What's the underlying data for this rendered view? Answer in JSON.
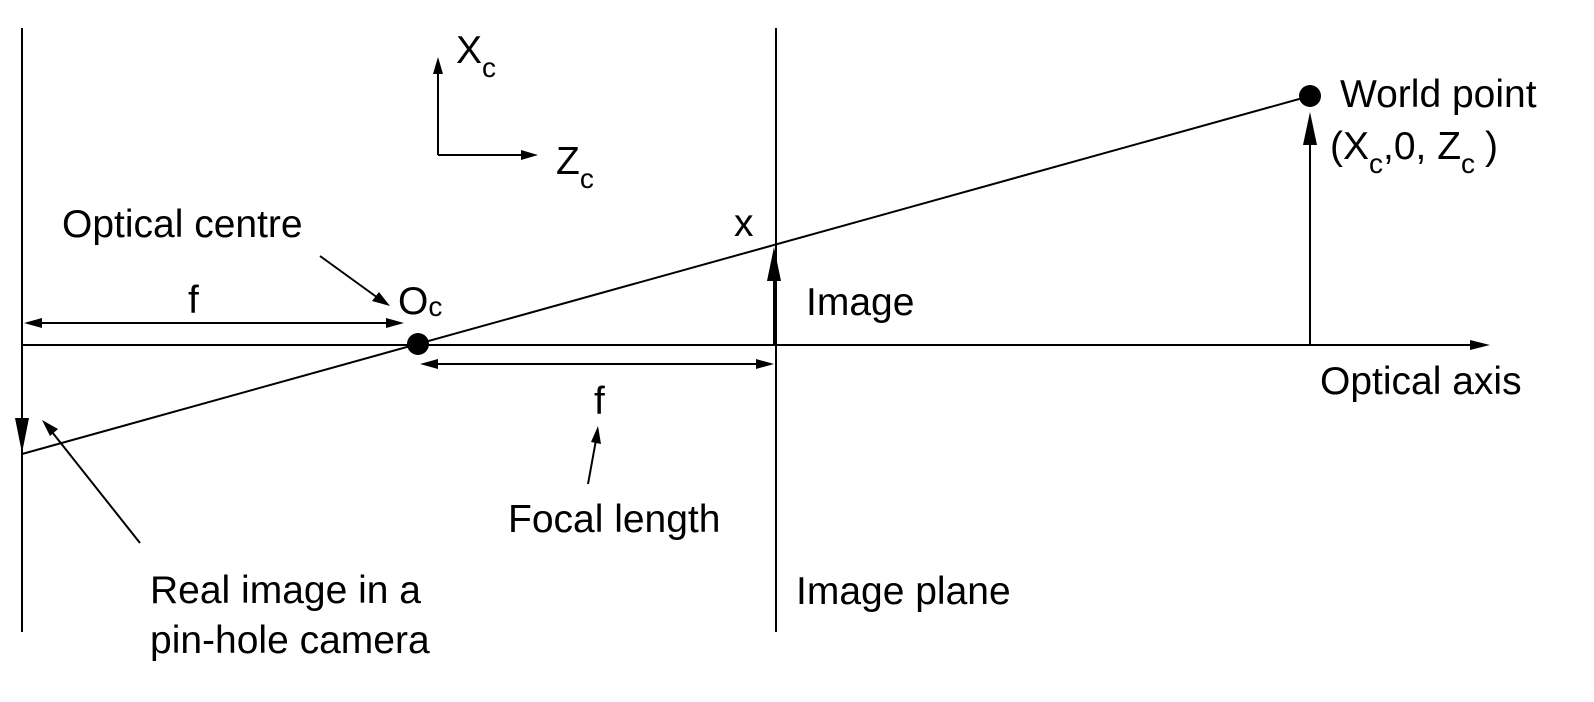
{
  "diagram": {
    "axes_label_x": "X",
    "axes_label_x_sub": "c",
    "axes_label_z": "Z",
    "axes_label_z_sub": "c",
    "optical_centre_label": "Optical centre",
    "oc_label": "O",
    "oc_sub": "c",
    "f_left_label": "f",
    "f_right_label": "f",
    "focal_length_label": "Focal length",
    "x_label": "x",
    "image_label": "Image",
    "world_point_label": "World point",
    "world_coord_open": "(X",
    "world_coord_sub1": "c",
    "world_coord_mid": ",0, Z",
    "world_coord_sub2": "c",
    "world_coord_close": ")",
    "optical_axis_label": "Optical axis",
    "image_plane_label": "Image plane",
    "real_image_line1": "Real image in a",
    "real_image_line2": "pin-hole camera"
  },
  "colors": {
    "ink": "#000000",
    "background": "#ffffff"
  }
}
